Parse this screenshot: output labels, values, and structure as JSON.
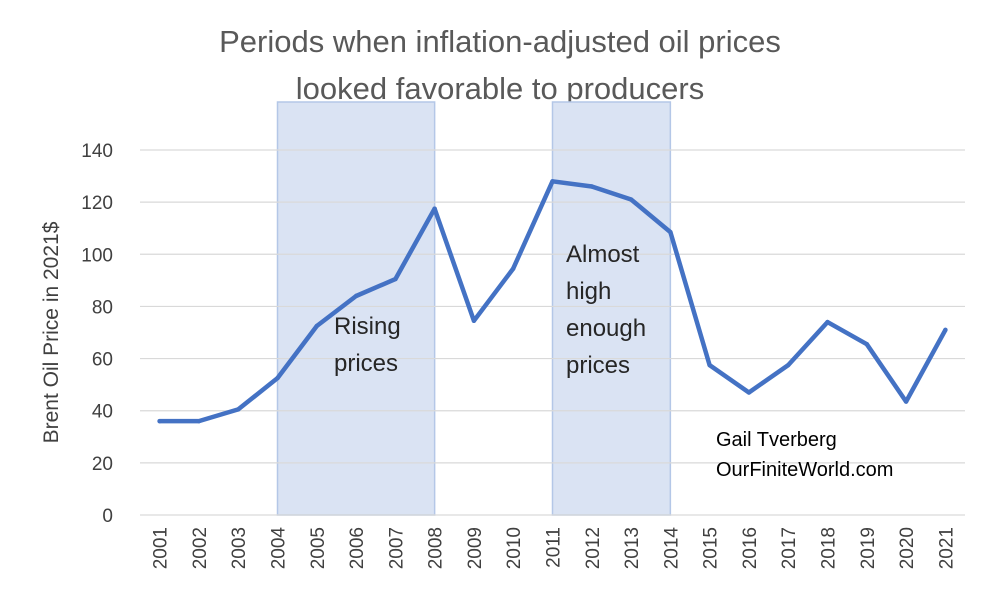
{
  "chart_data": {
    "type": "line",
    "title_lines": [
      "Periods when inflation-adjusted oil prices",
      "looked favorable to producers"
    ],
    "ylabel": "Brent Oil Price in 2021$",
    "xlabel": "",
    "ylim": [
      0,
      140
    ],
    "yticks": [
      0,
      20,
      40,
      60,
      80,
      100,
      120,
      140
    ],
    "grid": true,
    "legend": "none",
    "categories": [
      "2001",
      "2002",
      "2003",
      "2004",
      "2005",
      "2006",
      "2007",
      "2008",
      "2009",
      "2010",
      "2011",
      "2012",
      "2013",
      "2014",
      "2015",
      "2016",
      "2017",
      "2018",
      "2019",
      "2020",
      "2021"
    ],
    "series": [
      {
        "values": [
          36,
          36,
          40.5,
          52.5,
          72.5,
          84,
          90.5,
          117.5,
          74.5,
          94.5,
          128,
          126,
          121,
          108.5,
          57.5,
          47,
          57.5,
          74,
          65.5,
          43.5,
          71
        ],
        "color": "#4472C4"
      }
    ],
    "shaded_periods": [
      {
        "from": "2004",
        "to": "2008",
        "label_lines": [
          "Rising",
          "prices"
        ]
      },
      {
        "from": "2011",
        "to": "2014",
        "label_lines": [
          "Almost",
          "high",
          "enough",
          "prices"
        ]
      }
    ],
    "credit_lines": [
      "Gail Tverberg",
      "OurFiniteWorld.com"
    ],
    "colors": {
      "line": "#4472C4",
      "shade_fill": "#DAE3F3",
      "shade_stroke": "#B4C7E7",
      "grid": "#D9D9D9",
      "text": "#404040",
      "title": "#595959"
    }
  }
}
